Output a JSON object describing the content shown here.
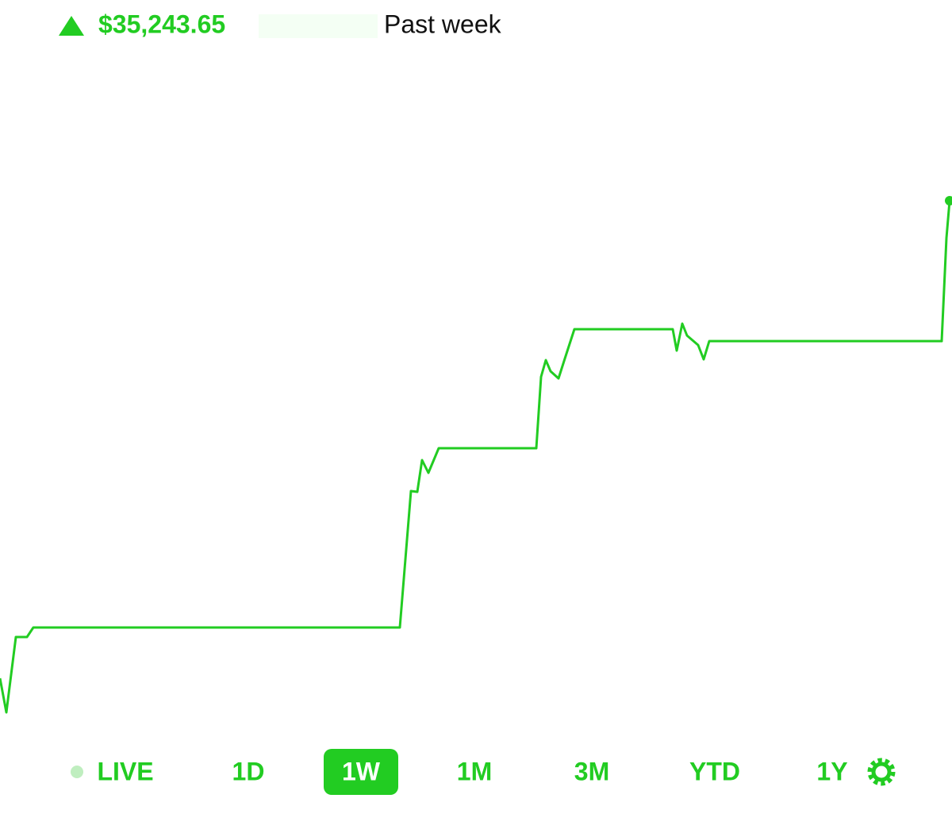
{
  "header": {
    "amount": "$35,243.65",
    "period": "Past week"
  },
  "chart_data": {
    "type": "line",
    "color": "#22cc22",
    "x": [
      0,
      8,
      20,
      34,
      42,
      504,
      518,
      526,
      532,
      540,
      553,
      676,
      682,
      688,
      694,
      704,
      712,
      724,
      848,
      853,
      860,
      866,
      880,
      887,
      894,
      1187,
      1193,
      1197
    ],
    "values": [
      5.625,
      0.25,
      12.125,
      12.125,
      13.625,
      13.625,
      35.125,
      35,
      40,
      38,
      41.875,
      41.875,
      53.125,
      55.75,
      54,
      52.875,
      56,
      60.625,
      60.625,
      57.25,
      61.5,
      59.625,
      58.125,
      55.875,
      58.75,
      58.75,
      75,
      80.875
    ],
    "xlim": [
      0,
      1200
    ],
    "ylim": [
      0,
      100
    ]
  },
  "ranges": [
    "LIVE",
    "1D",
    "1W",
    "1M",
    "3M",
    "YTD",
    "1Y"
  ],
  "selected_range": "1W"
}
